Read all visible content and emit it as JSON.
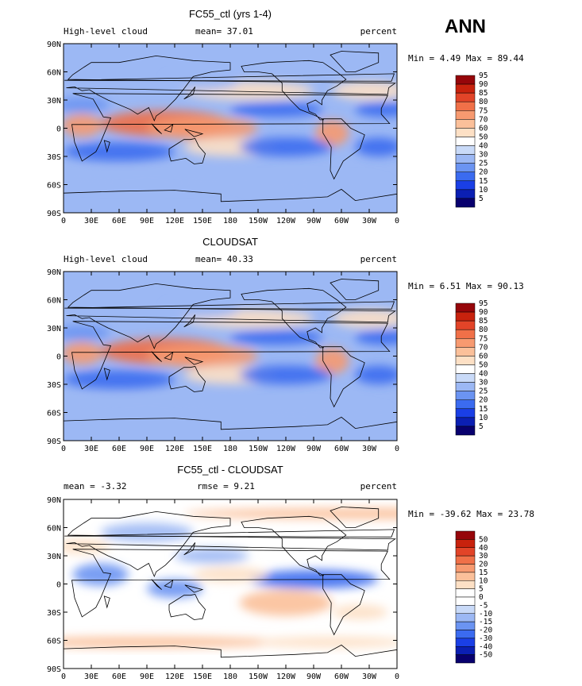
{
  "season": "ANN",
  "colors": {
    "cloud": [
      "#08006e",
      "#0b1fb3",
      "#1a3fe6",
      "#3b6bf0",
      "#6b94f2",
      "#9cb8f4",
      "#c9daf8",
      "#ffffff",
      "#fde0c5",
      "#fbc09a",
      "#f79a70",
      "#f07048",
      "#e24428",
      "#c8220d",
      "#96060a"
    ],
    "diff": [
      "#08006e",
      "#0b1fb3",
      "#1a3fe6",
      "#3b6bf0",
      "#6b94f2",
      "#9cb8f4",
      "#c9daf8",
      "#ffffff",
      "#ffffff",
      "#fde0c5",
      "#fbc09a",
      "#f79a70",
      "#f07048",
      "#e24428",
      "#c8220d",
      "#96060a"
    ],
    "continent": "#000000"
  },
  "chart_data": [
    {
      "type": "heatmap",
      "title": "FC55_ctl (yrs 1-4)",
      "left_label": "High-level cloud",
      "stat_text": "mean=  37.01",
      "units": "percent",
      "minmax_text": "Min =   4.49 Max =  89.44",
      "xticks": [
        "0",
        "30E",
        "60E",
        "90E",
        "120E",
        "150E",
        "180",
        "150W",
        "120W",
        "90W",
        "60W",
        "30W",
        "0"
      ],
      "yticks": [
        "90N",
        "60N",
        "30N",
        "0",
        "30S",
        "60S",
        "90S"
      ],
      "xlim": [
        0,
        360
      ],
      "ylim": [
        -90,
        90
      ],
      "colorbar_levels": [
        "5",
        "10",
        "15",
        "20",
        "25",
        "30",
        "40",
        "50",
        "60",
        "70",
        "75",
        "80",
        "85",
        "90",
        "95"
      ]
    },
    {
      "type": "heatmap",
      "title": "CLOUDSAT",
      "left_label": "High-level cloud",
      "stat_text": "mean=  40.33",
      "units": "percent",
      "minmax_text": "Min =   6.51 Max =  90.13",
      "xticks": [
        "0",
        "30E",
        "60E",
        "90E",
        "120E",
        "150E",
        "180",
        "150W",
        "120W",
        "90W",
        "60W",
        "30W",
        "0"
      ],
      "yticks": [
        "90N",
        "60N",
        "30N",
        "0",
        "30S",
        "60S",
        "90S"
      ],
      "xlim": [
        0,
        360
      ],
      "ylim": [
        -90,
        90
      ],
      "colorbar_levels": [
        "5",
        "10",
        "15",
        "20",
        "25",
        "30",
        "40",
        "50",
        "60",
        "70",
        "75",
        "80",
        "85",
        "90",
        "95"
      ]
    },
    {
      "type": "heatmap",
      "title": "FC55_ctl - CLOUDSAT",
      "left_label": "mean =  -3.32",
      "stat_text": "rmse =   9.21",
      "units": "percent",
      "minmax_text": "Min = -39.62 Max =  23.78",
      "xticks": [
        "0",
        "30E",
        "60E",
        "90E",
        "120E",
        "150E",
        "180",
        "150W",
        "120W",
        "90W",
        "60W",
        "30W",
        "0"
      ],
      "yticks": [
        "90N",
        "60N",
        "30N",
        "0",
        "30S",
        "60S",
        "90S"
      ],
      "xlim": [
        0,
        360
      ],
      "ylim": [
        -90,
        90
      ],
      "colorbar_levels": [
        "-50",
        "-40",
        "-30",
        "-20",
        "-15",
        "-10",
        "-5",
        "0",
        "5",
        "10",
        "15",
        "20",
        "30",
        "40",
        "50"
      ]
    }
  ]
}
